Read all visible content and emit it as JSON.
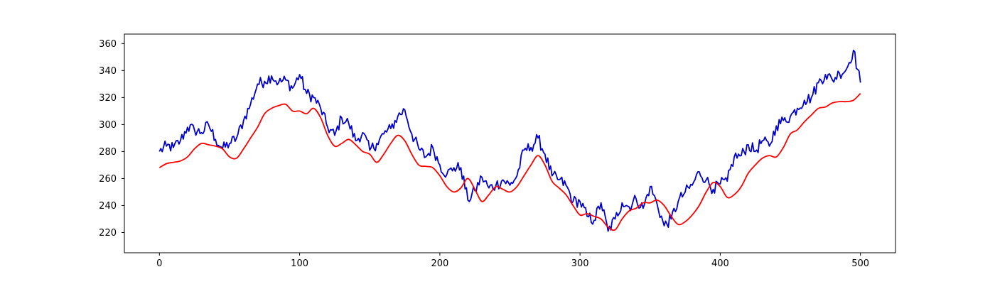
{
  "chart_data": {
    "type": "line",
    "title": "",
    "xlabel": "",
    "ylabel": "",
    "xlim": [
      -25,
      525
    ],
    "ylim": [
      205,
      367
    ],
    "x_ticks": [
      0,
      100,
      200,
      300,
      400,
      500
    ],
    "y_ticks": [
      220,
      240,
      260,
      280,
      300,
      320,
      340,
      360
    ],
    "grid": false,
    "legend": "none",
    "series": [
      {
        "color": "#0000cc",
        "style": "noisy",
        "x": [
          0,
          5,
          10,
          15,
          20,
          25,
          30,
          35,
          40,
          45,
          50,
          55,
          60,
          65,
          70,
          75,
          80,
          85,
          90,
          95,
          100,
          105,
          110,
          115,
          120,
          125,
          130,
          135,
          140,
          145,
          150,
          155,
          160,
          165,
          170,
          175,
          180,
          185,
          190,
          195,
          200,
          205,
          210,
          215,
          220,
          225,
          230,
          235,
          240,
          245,
          250,
          255,
          260,
          265,
          270,
          275,
          280,
          285,
          290,
          295,
          300,
          305,
          310,
          315,
          320,
          325,
          330,
          335,
          340,
          345,
          350,
          355,
          360,
          365,
          370,
          375,
          380,
          385,
          390,
          395,
          400,
          405,
          410,
          415,
          420,
          425,
          430,
          435,
          440,
          445,
          450,
          455,
          460,
          465,
          470,
          475,
          480,
          485,
          490,
          495,
          500
        ],
        "y": [
          280,
          284,
          283,
          288,
          298,
          296,
          294,
          300,
          289,
          282,
          286,
          290,
          303,
          315,
          330,
          332,
          336,
          331,
          333,
          327,
          337,
          323,
          320,
          312,
          298,
          292,
          305,
          301,
          288,
          294,
          281,
          286,
          293,
          297,
          306,
          311,
          293,
          282,
          276,
          283,
          270,
          263,
          268,
          268,
          244,
          251,
          261,
          253,
          255,
          259,
          255,
          262,
          281,
          283,
          290,
          278,
          262,
          259,
          255,
          243,
          243,
          232,
          229,
          242,
          221,
          230,
          242,
          239,
          245,
          238,
          254,
          241,
          225,
          230,
          243,
          250,
          255,
          265,
          259,
          252,
          256,
          258,
          276,
          277,
          285,
          280,
          288,
          284,
          299,
          303,
          306,
          312,
          318,
          320,
          331,
          337,
          333,
          338,
          341,
          355,
          331
        ]
      },
      {
        "color": "#ff0000",
        "style": "smooth",
        "x": [
          0,
          5,
          10,
          15,
          20,
          25,
          30,
          35,
          40,
          45,
          50,
          55,
          60,
          65,
          70,
          75,
          80,
          85,
          90,
          95,
          100,
          105,
          110,
          115,
          120,
          125,
          130,
          135,
          140,
          145,
          150,
          155,
          160,
          165,
          170,
          175,
          180,
          185,
          190,
          195,
          200,
          205,
          210,
          215,
          220,
          225,
          230,
          235,
          240,
          245,
          250,
          255,
          260,
          265,
          270,
          275,
          280,
          285,
          290,
          295,
          300,
          305,
          310,
          315,
          320,
          325,
          330,
          335,
          340,
          345,
          350,
          355,
          360,
          365,
          370,
          375,
          380,
          385,
          390,
          395,
          400,
          405,
          410,
          415,
          420,
          425,
          430,
          435,
          440,
          445,
          450,
          455,
          460,
          465,
          470,
          475,
          480,
          485,
          490,
          495,
          500
        ],
        "y": [
          268,
          271,
          272,
          273,
          276,
          282,
          286,
          285,
          284,
          282,
          276,
          275,
          282,
          290,
          298,
          308,
          312,
          314,
          315,
          310,
          310,
          308,
          312,
          305,
          292,
          284,
          286,
          289,
          285,
          280,
          278,
          272,
          278,
          286,
          292,
          288,
          278,
          270,
          269,
          268,
          262,
          254,
          250,
          253,
          260,
          252,
          243,
          248,
          254,
          252,
          250,
          254,
          262,
          270,
          277,
          270,
          258,
          253,
          248,
          240,
          233,
          234,
          232,
          230,
          224,
          222,
          230,
          236,
          238,
          242,
          242,
          244,
          240,
          232,
          226,
          228,
          233,
          240,
          250,
          257,
          254,
          246,
          248,
          254,
          264,
          270,
          275,
          277,
          276,
          283,
          293,
          296,
          302,
          307,
          312,
          313,
          316,
          317,
          317,
          318,
          323
        ]
      }
    ]
  }
}
